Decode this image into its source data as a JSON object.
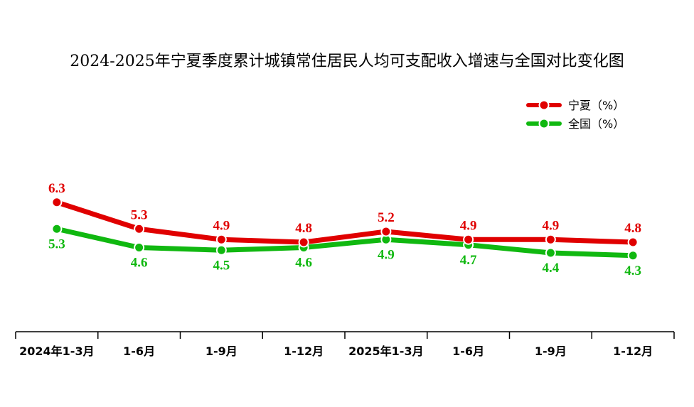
{
  "chart_data": {
    "type": "line",
    "title": "2024-2025年宁夏季度累计城镇常住居民人均可支配收入增速与全国对比变化图",
    "categories": [
      "2024年1-3月",
      "1-6月",
      "1-9月",
      "1-12月",
      "2025年1-3月",
      "1-6月",
      "1-9月",
      "1-12月"
    ],
    "series": [
      {
        "name": "宁夏（%）",
        "color": "#e00000",
        "values": [
          6.3,
          5.3,
          4.9,
          4.8,
          5.2,
          4.9,
          4.9,
          4.8
        ]
      },
      {
        "name": "全国（%）",
        "color": "#10b810",
        "values": [
          5.3,
          4.6,
          4.5,
          4.6,
          4.9,
          4.7,
          4.4,
          4.3
        ]
      }
    ],
    "legend_position": "top-right",
    "grid": false
  }
}
